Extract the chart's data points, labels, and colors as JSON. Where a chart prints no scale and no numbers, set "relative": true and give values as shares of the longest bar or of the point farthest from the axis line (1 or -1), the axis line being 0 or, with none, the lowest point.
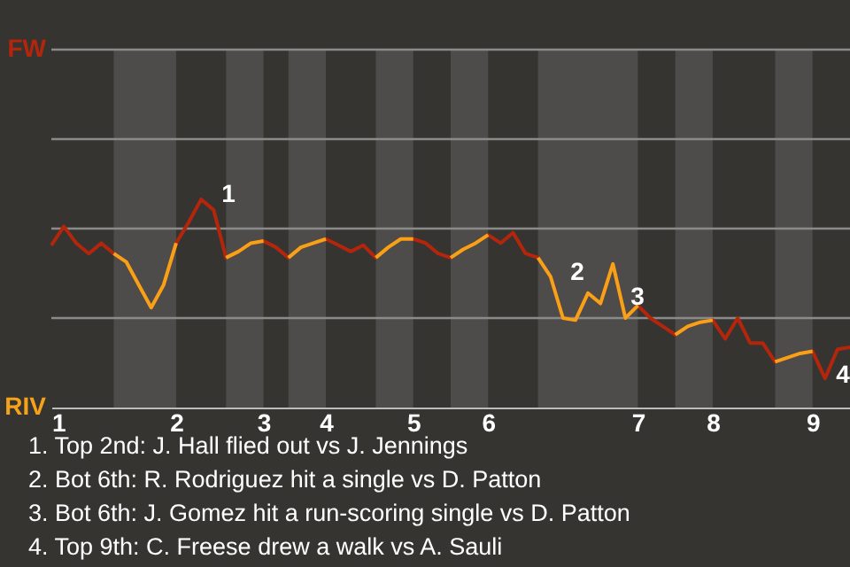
{
  "chart_data": {
    "type": "line",
    "relative": true,
    "categories": [
      "1",
      null,
      null,
      null,
      null,
      null,
      null,
      null,
      null,
      null,
      "2",
      null,
      null,
      null,
      null,
      null,
      null,
      "3",
      null,
      null,
      null,
      null,
      "4",
      null,
      null,
      null,
      null,
      null,
      null,
      "5",
      null,
      null,
      null,
      null,
      null,
      "6",
      null,
      null,
      null,
      null,
      null,
      null,
      null,
      null,
      null,
      null,
      null,
      "7",
      null,
      null,
      null,
      null,
      null,
      "8",
      null,
      null,
      null,
      null,
      null,
      null,
      null,
      "9",
      null,
      null,
      null
    ],
    "series": [
      {
        "color": "#b3260c",
        "values": [
          0.78,
          0.87,
          0.79,
          0.74,
          0.79,
          0.74,
          0.7,
          0.59,
          0.48,
          0.59,
          0.79,
          0.89,
          1,
          0.95,
          0.72,
          0.75,
          0.79,
          0.8,
          0.77,
          0.72,
          0.77,
          0.79,
          0.81,
          0.78,
          0.75,
          0.78,
          0.72,
          0.77,
          0.81,
          0.81,
          0.79,
          0.74,
          0.72,
          0.76,
          0.79,
          0.83,
          0.79,
          0.84,
          0.74,
          0.72,
          0.63,
          0.43,
          0.42,
          0.55,
          0.5,
          0.69,
          0.43,
          0.49,
          0.43,
          0.39,
          0.35,
          0.39,
          0.41,
          0.42,
          0.33,
          0.43,
          0.31,
          0.31,
          0.22,
          0.24,
          0.26,
          0.27,
          0.14,
          0.28,
          0.29
        ]
      },
      {
        "color": "#f5a21b",
        "values": [
          null,
          null,
          null,
          null,
          null,
          0.74,
          0.7,
          0.59,
          0.48,
          0.59,
          0.79,
          null,
          null,
          null,
          0.72,
          0.75,
          0.79,
          0.8,
          null,
          0.72,
          0.77,
          0.79,
          0.81,
          null,
          null,
          null,
          0.72,
          0.77,
          0.81,
          0.81,
          null,
          null,
          0.72,
          0.76,
          0.79,
          0.83,
          null,
          null,
          null,
          0.72,
          0.63,
          0.43,
          0.42,
          0.55,
          0.5,
          0.69,
          0.43,
          0.49,
          null,
          null,
          0.35,
          0.39,
          0.41,
          0.42,
          null,
          null,
          null,
          null,
          0.22,
          0.24,
          0.26,
          0.27,
          null,
          null,
          null
        ]
      }
    ],
    "ref_lines": [
      {
        "axis": "y",
        "value": 0.43,
        "color": "#8a8a8a"
      },
      {
        "axis": "y",
        "value": 0.86,
        "color": "#8a8a8a"
      },
      {
        "axis": "y",
        "value": 1.29,
        "color": "#8a8a8a"
      },
      {
        "axis": "y",
        "value": 1.72,
        "color": "#8a8a8a"
      }
    ],
    "annotations": [
      "FW",
      "RIV",
      "1",
      "2",
      "3",
      "4",
      "1. Top 2nd: J. Hall flied out vs J. Jennings",
      "2. Bot 6th: R. Rodriguez hit a single vs D. Patton",
      "3. Bot 6th: J. Gomez hit a run-scoring single vs D. Patton",
      "4. Top 9th: C. Freese drew a walk vs A. Sauli"
    ]
  }
}
